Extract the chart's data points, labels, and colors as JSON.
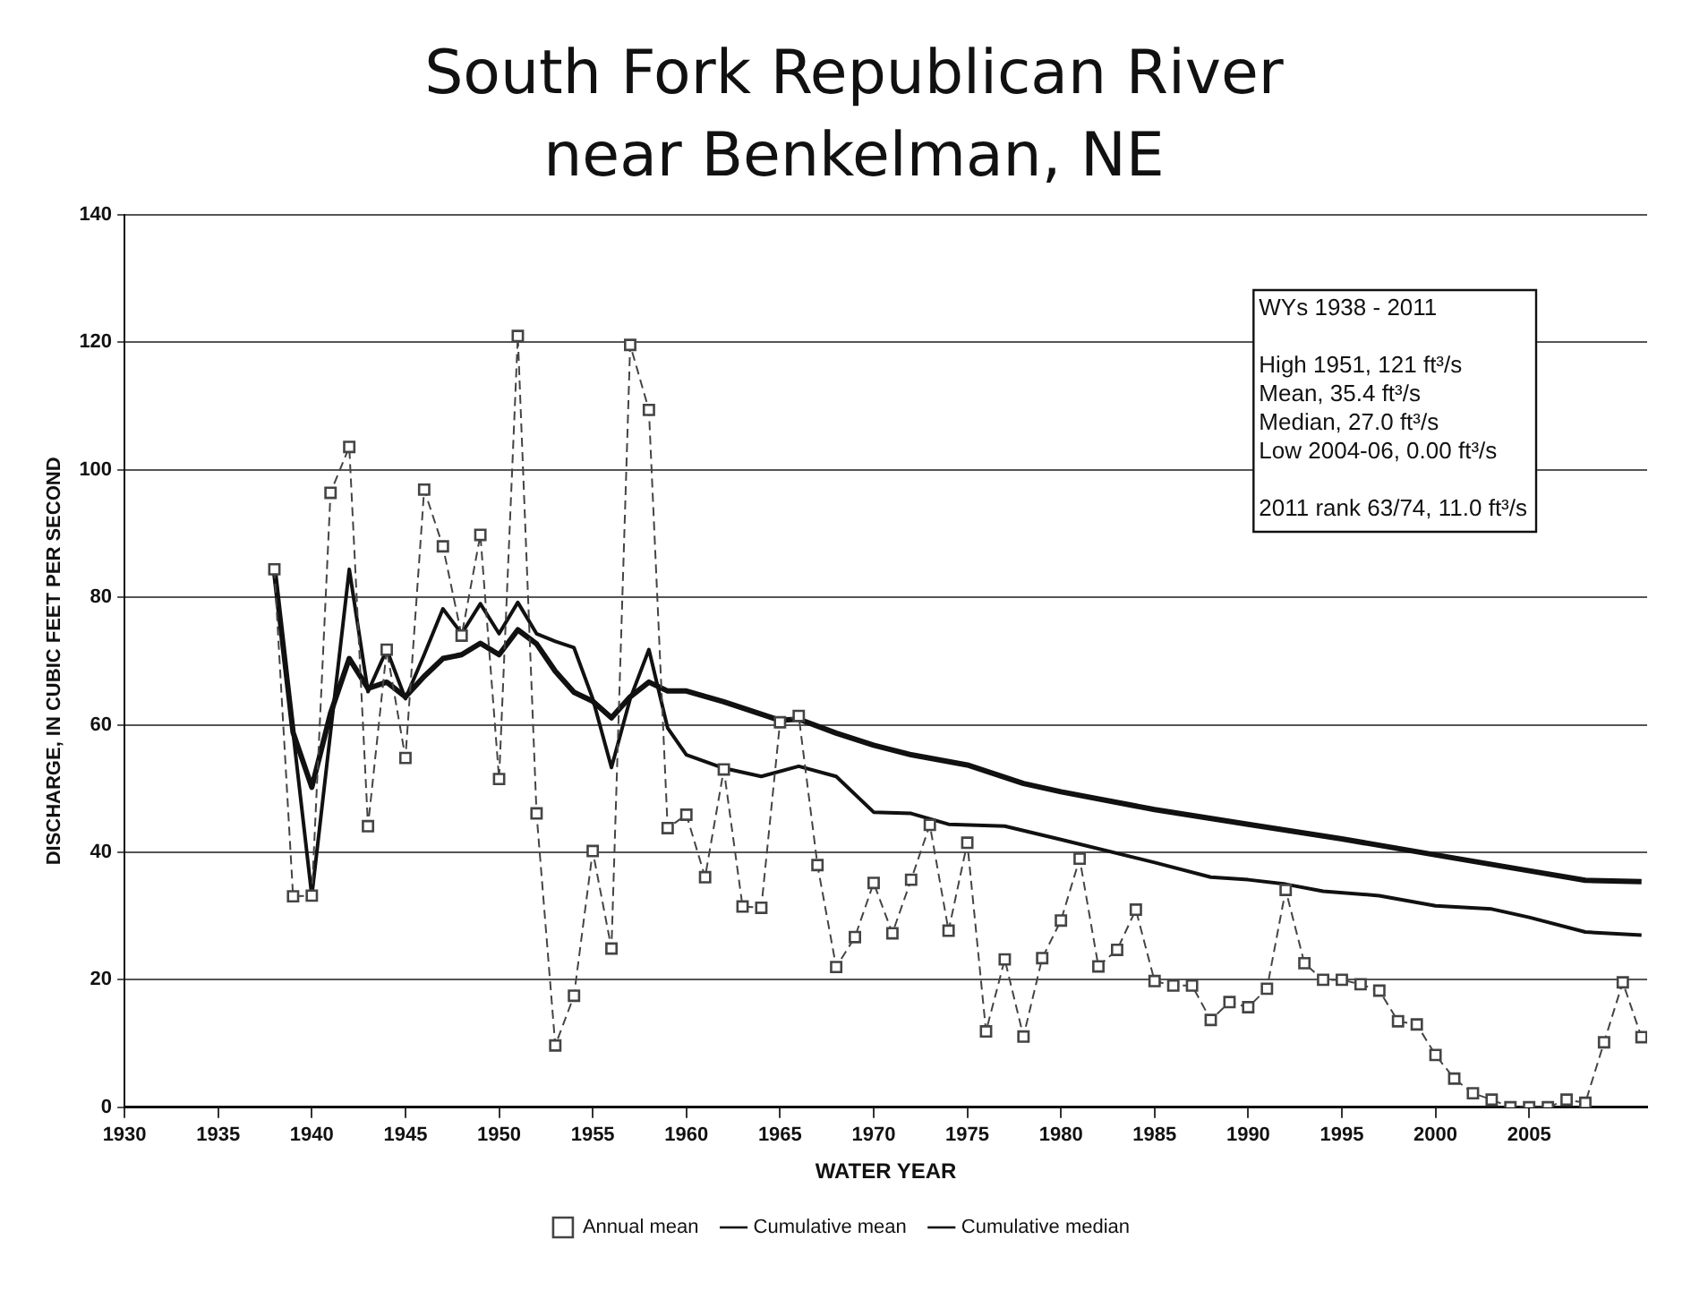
{
  "chart_data": {
    "type": "line",
    "title": "South Fork Republican River\nnear Benkelman, NE",
    "xlabel": "WATER YEAR",
    "ylabel": "DISCHARGE, IN CUBIC FEET PER SECOND",
    "x": [
      1938,
      1939,
      1940,
      1941,
      1942,
      1943,
      1944,
      1945,
      1946,
      1947,
      1948,
      1949,
      1950,
      1951,
      1952,
      1953,
      1954,
      1955,
      1956,
      1957,
      1958,
      1959,
      1960,
      1961,
      1962,
      1963,
      1964,
      1965,
      1966,
      1967,
      1968,
      1969,
      1970,
      1971,
      1972,
      1973,
      1974,
      1975,
      1976,
      1977,
      1978,
      1979,
      1980,
      1981,
      1982,
      1983,
      1984,
      1985,
      1986,
      1987,
      1988,
      1989,
      1990,
      1991,
      1992,
      1993,
      1994,
      1995,
      1996,
      1997,
      1998,
      1999,
      2000,
      2001,
      2002,
      2003,
      2004,
      2005,
      2006,
      2007,
      2008,
      2009,
      2010,
      2011
    ],
    "series": [
      {
        "name": "Annual mean",
        "color": "#444444",
        "marker": "square",
        "line_style": "dashed",
        "values": [
          84.4,
          33.1,
          33.2,
          96.4,
          103.6,
          44.1,
          71.8,
          54.8,
          96.9,
          88.0,
          74.0,
          89.8,
          51.5,
          121,
          46.1,
          9.7,
          17.5,
          40.2,
          24.9,
          119.6,
          109.4,
          43.8,
          45.9,
          36.1,
          53.0,
          31.5,
          31.3,
          60.4,
          61.4,
          38.0,
          22.0,
          26.7,
          35.2,
          27.3,
          35.7,
          44.3,
          27.7,
          41.5,
          11.9,
          23.2,
          11.1,
          23.4,
          29.3,
          39.0,
          22.1,
          24.7,
          31.0,
          19.8,
          19.1,
          19.1,
          13.7,
          16.5,
          15.7,
          18.6,
          34.1,
          22.6,
          20.0,
          20.0,
          19.3,
          18.3,
          13.5,
          13.0,
          8.2,
          4.5,
          2.2,
          1.2,
          0,
          0,
          0,
          1.2,
          0.7,
          10.2,
          19.6,
          11.0
        ]
      },
      {
        "name": "Cumulative mean",
        "color": "#111111",
        "marker": "none",
        "line_style": "solid",
        "x": [
          1938,
          1939,
          1940,
          1941,
          1942,
          1943,
          1944,
          1945,
          1946,
          1947,
          1948,
          1949,
          1950,
          1951,
          1952,
          1953,
          1954,
          1955,
          1956,
          1957,
          1958,
          1959,
          1960,
          1962,
          1965,
          1966,
          1968,
          1970,
          1972,
          1975,
          1978,
          1980,
          1985,
          1990,
          1995,
          2000,
          2005,
          2008,
          2011
        ],
        "values": [
          84.4,
          58.8,
          50.2,
          61.8,
          70.4,
          65.7,
          66.7,
          64.4,
          67.6,
          70.4,
          71.0,
          72.8,
          71.0,
          74.9,
          72.7,
          68.4,
          65.1,
          63.7,
          61.1,
          64.4,
          66.7,
          65.3,
          65.3,
          63.6,
          60.7,
          60.9,
          58.7,
          56.8,
          55.3,
          53.7,
          50.8,
          49.5,
          46.7,
          44.4,
          42.1,
          39.6,
          37.1,
          35.6,
          35.4
        ]
      },
      {
        "name": "Cumulative median",
        "color": "#111111",
        "marker": "none",
        "line_style": "solid",
        "x": [
          1938,
          1939,
          1940,
          1941,
          1942,
          1943,
          1944,
          1945,
          1946,
          1947,
          1948,
          1949,
          1950,
          1951,
          1952,
          1953,
          1954,
          1955,
          1956,
          1957,
          1958,
          1959,
          1960,
          1962,
          1964,
          1966,
          1968,
          1970,
          1972,
          1974,
          1977,
          1980,
          1985,
          1988,
          1990,
          1992,
          1994,
          1997,
          2000,
          2003,
          2005,
          2008,
          2011
        ],
        "values": [
          84.4,
          58.8,
          33.2,
          58.8,
          84.4,
          65.2,
          71.8,
          64.1,
          71.0,
          78.2,
          74.3,
          79.0,
          74.3,
          79.2,
          74.3,
          73.1,
          72.1,
          64.1,
          53.3,
          64.1,
          71.8,
          59.5,
          55.3,
          53.2,
          51.9,
          53.5,
          51.9,
          46.3,
          46.1,
          44.4,
          44.1,
          42.0,
          38.4,
          36.1,
          35.7,
          35.0,
          33.9,
          33.2,
          31.6,
          31.1,
          29.8,
          27.5,
          27.0
        ]
      }
    ],
    "xlim": [
      1930,
      2011.3
    ],
    "xticks": [
      1930,
      1935,
      1940,
      1945,
      1950,
      1955,
      1960,
      1965,
      1970,
      1975,
      1980,
      1985,
      1990,
      1995,
      2000,
      2005
    ],
    "ylim": [
      0,
      140
    ],
    "yticks": [
      0,
      20,
      40,
      60,
      80,
      100,
      120,
      140
    ],
    "grid": "y",
    "legend": "bottom",
    "annotations": [
      "WYs 1938 - 2011",
      "High 1951, 121 ft³/s",
      "Mean, 35.4 ft³/s",
      "Median, 27.0 ft³/s",
      "Low 2004-06, 0.00 ft³/s",
      "2011 rank 63/74, 11.0 ft³/s"
    ]
  }
}
